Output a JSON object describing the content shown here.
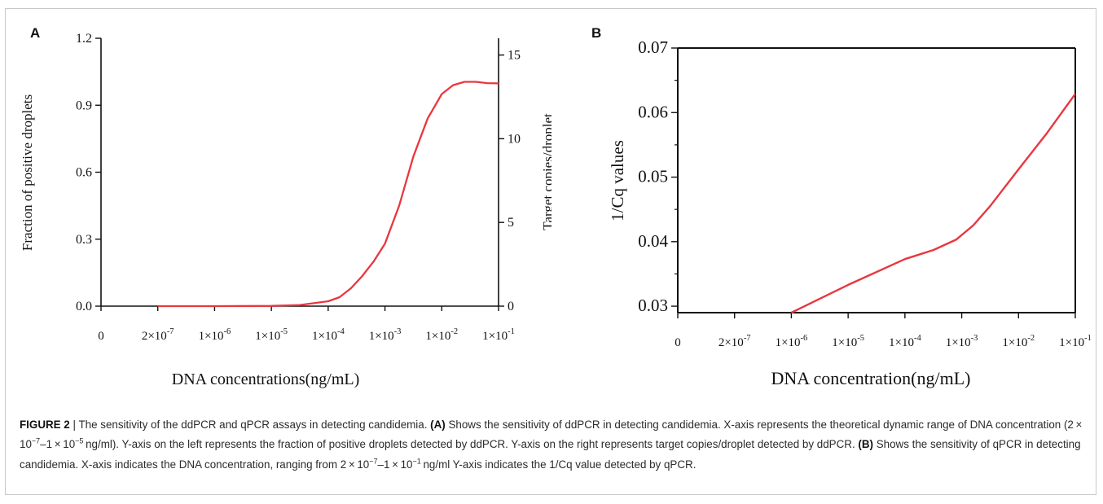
{
  "caption": {
    "label": "FIGURE 2",
    "separator": "|",
    "parts": [
      {
        "t": "The sensitivity of the ddPCR and qPCR assays in detecting candidemia. "
      },
      {
        "b": "(A)"
      },
      {
        "t": " Shows the sensitivity of ddPCR in detecting candidemia. X-axis represents the theoretical dynamic range of DNA concentration (2 × 10"
      },
      {
        "sup": "−7"
      },
      {
        "t": "–1 × 10"
      },
      {
        "sup": "−5"
      },
      {
        "t": " ng/ml). Y-axis on the left represents the fraction of positive droplets detected by ddPCR. Y-axis on the right represents target copies/droplet detected by ddPCR. "
      },
      {
        "b": "(B)"
      },
      {
        "t": " Shows the sensitivity of qPCR in detecting candidemia. X-axis indicates the DNA concentration, ranging from 2 × 10"
      },
      {
        "sup": "−7"
      },
      {
        "t": "–1 × 10"
      },
      {
        "sup": "−1"
      },
      {
        "t": " ng/ml Y-axis indicates the 1/Cq value detected by qPCR."
      }
    ]
  },
  "chart_data": [
    {
      "panel": "A",
      "type": "line",
      "title": "",
      "xlabel": "DNA concentrations(ng/mL)",
      "ylabel": "Fraction of positive droplets",
      "y2label": "Target copies/droplet",
      "x_scale": "categorical-log",
      "x_ticks": [
        {
          "m": "0",
          "e": ""
        },
        {
          "m": "2×10",
          "e": "-7"
        },
        {
          "m": "1×10",
          "e": "-6"
        },
        {
          "m": "1×10",
          "e": "-5"
        },
        {
          "m": "1×10",
          "e": "-4"
        },
        {
          "m": "1×10",
          "e": "-3"
        },
        {
          "m": "1×10",
          "e": "-2"
        },
        {
          "m": "1×10",
          "e": "-1"
        }
      ],
      "ylim": [
        0,
        1.2
      ],
      "y_ticks": [
        "0.0",
        "0.3",
        "0.6",
        "0.9",
        "1.2"
      ],
      "y2lim": [
        0,
        16
      ],
      "y2_ticks": [
        "0",
        "5",
        "10",
        "15"
      ],
      "grid": false,
      "series": [
        {
          "color": "#e8373f",
          "points": [
            [
              1,
              0.0
            ],
            [
              2,
              0.0
            ],
            [
              3,
              0.001
            ],
            [
              3.5,
              0.005
            ],
            [
              4,
              0.022
            ],
            [
              4.2,
              0.04
            ],
            [
              4.4,
              0.08
            ],
            [
              4.6,
              0.135
            ],
            [
              4.8,
              0.2
            ],
            [
              5,
              0.28
            ],
            [
              5.25,
              0.45
            ],
            [
              5.5,
              0.67
            ],
            [
              5.75,
              0.84
            ],
            [
              6,
              0.95
            ],
            [
              6.2,
              0.99
            ],
            [
              6.4,
              1.005
            ],
            [
              6.6,
              1.005
            ],
            [
              6.8,
              0.999
            ],
            [
              7,
              0.998
            ]
          ]
        }
      ]
    },
    {
      "panel": "B",
      "type": "line",
      "title": "",
      "xlabel": "DNA concentration(ng/mL)",
      "ylabel": "1/Cq values",
      "x_scale": "categorical-log",
      "x_ticks": [
        {
          "m": "0",
          "e": ""
        },
        {
          "m": "2×10",
          "e": "-7"
        },
        {
          "m": "1×10",
          "e": "-6"
        },
        {
          "m": "1×10",
          "e": "-5"
        },
        {
          "m": "1×10",
          "e": "-4"
        },
        {
          "m": "1×10",
          "e": "-3"
        },
        {
          "m": "1×10",
          "e": "-2"
        },
        {
          "m": "1×10",
          "e": "-1"
        }
      ],
      "ylim": [
        0.029,
        0.07
      ],
      "y_ticks": [
        "0.03",
        "0.04",
        "0.05",
        "0.06",
        "0.07"
      ],
      "grid": false,
      "series": [
        {
          "color": "#e8373f",
          "points": [
            [
              2,
              0.029
            ],
            [
              3,
              0.0333
            ],
            [
              4,
              0.0373
            ],
            [
              4.5,
              0.0387
            ],
            [
              4.9,
              0.0403
            ],
            [
              5.2,
              0.0425
            ],
            [
              5.5,
              0.0455
            ],
            [
              6,
              0.0512
            ],
            [
              6.5,
              0.0568
            ],
            [
              7,
              0.0629
            ]
          ]
        }
      ]
    }
  ]
}
